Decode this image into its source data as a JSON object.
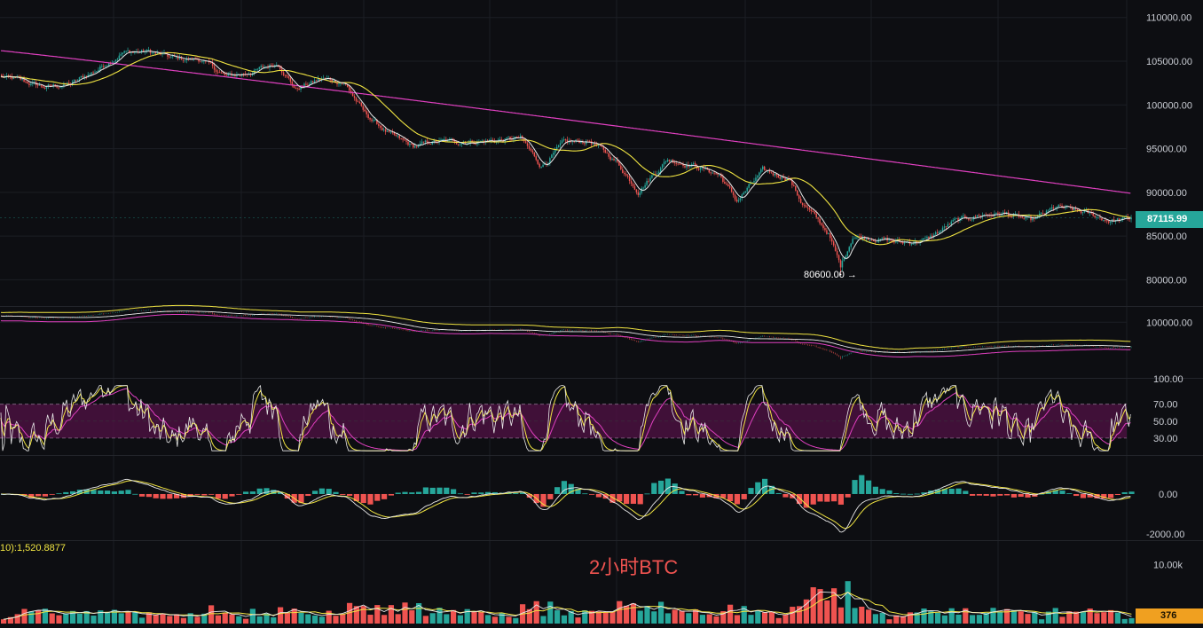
{
  "theme": {
    "background": "#0d0e12",
    "grid": "#1c1e24",
    "separator": "#23252b",
    "axis_text": "#c9ccd3",
    "up": "#26a69a",
    "down": "#ef5350",
    "ma_short": "#e8e8e8",
    "ma_mid": "#f0e442",
    "ma_long": "#e040c0",
    "rsi_band": "#4a1040",
    "price_tag": "#26a69a",
    "volume_tag": "#f0a020",
    "watermark": "#ef5350"
  },
  "annotations": {
    "low_label": "80600.00 →",
    "watermark": "2小时BTC",
    "volume_ma_label": "10):1,520.8877"
  },
  "tags": {
    "last_price": "87115.99",
    "last_volume": "376"
  },
  "chart_data": [
    {
      "panel": "price",
      "type": "candlestick",
      "title": "",
      "ylim": [
        77000,
        112000
      ],
      "ticks": [
        "80000.00",
        "85000.00",
        "90000.00",
        "95000.00",
        "100000.00",
        "105000.00",
        "110000.00"
      ],
      "anchors": [
        [
          0,
          103200
        ],
        [
          10,
          102800
        ],
        [
          25,
          102000
        ],
        [
          40,
          102400
        ],
        [
          55,
          104000
        ],
        [
          70,
          106000
        ],
        [
          85,
          106100
        ],
        [
          100,
          105300
        ],
        [
          115,
          105200
        ],
        [
          130,
          103200
        ],
        [
          145,
          103800
        ],
        [
          160,
          104800
        ],
        [
          170,
          101800
        ],
        [
          185,
          103000
        ],
        [
          198,
          102600
        ],
        [
          210,
          99000
        ],
        [
          225,
          96500
        ],
        [
          238,
          95200
        ],
        [
          250,
          95800
        ],
        [
          268,
          95800
        ],
        [
          285,
          95900
        ],
        [
          300,
          96200
        ],
        [
          312,
          93000
        ],
        [
          325,
          95600
        ],
        [
          340,
          95900
        ],
        [
          355,
          93600
        ],
        [
          368,
          90200
        ],
        [
          385,
          93800
        ],
        [
          400,
          93100
        ],
        [
          415,
          92000
        ],
        [
          425,
          89000
        ],
        [
          440,
          92400
        ],
        [
          455,
          91700
        ],
        [
          462,
          89000
        ],
        [
          470,
          87200
        ],
        [
          478,
          85300
        ],
        [
          485,
          81500
        ],
        [
          492,
          85000
        ],
        [
          505,
          84800
        ],
        [
          520,
          84200
        ],
        [
          535,
          84600
        ],
        [
          550,
          86600
        ],
        [
          565,
          87400
        ],
        [
          580,
          87600
        ],
        [
          595,
          86700
        ],
        [
          610,
          88300
        ],
        [
          625,
          87700
        ],
        [
          640,
          86800
        ],
        [
          653,
          86900
        ]
      ],
      "last_price": 87115.99,
      "low_marker": 80600
    },
    {
      "panel": "boll",
      "type": "line",
      "ylim": [
        71000,
        108000
      ],
      "ticks": [
        "100000.00"
      ],
      "series": []
    },
    {
      "panel": "rsi",
      "type": "line",
      "ylim": [
        10,
        100
      ],
      "ticks": [
        "30.00",
        "50.00",
        "70.00",
        "100.00"
      ],
      "band": [
        30,
        70
      ],
      "series": []
    },
    {
      "panel": "macd",
      "type": "bar",
      "ylim": [
        -2300,
        1900
      ],
      "ticks": [
        "-2000.00",
        "0.00"
      ],
      "series": []
    },
    {
      "panel": "volume",
      "type": "bar",
      "ylim": [
        0,
        14000
      ],
      "ticks": [
        "10.00k"
      ],
      "series": []
    }
  ]
}
